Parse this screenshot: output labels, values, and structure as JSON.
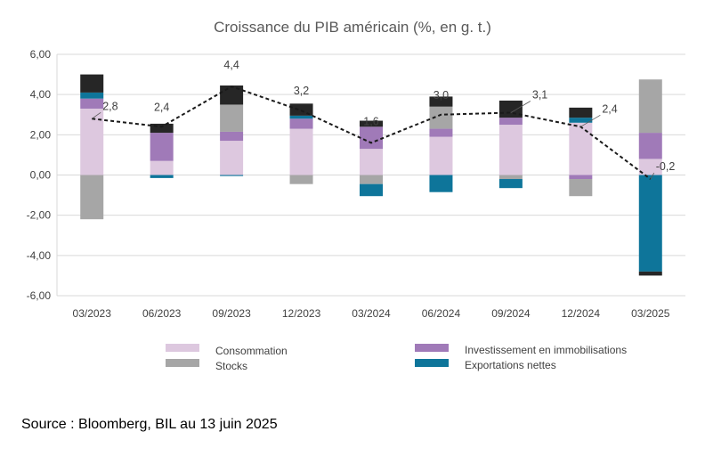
{
  "chart_data": {
    "type": "bar",
    "title": "Croissance du PIB américain (%, en g. t.)",
    "categories": [
      "03/2023",
      "06/2023",
      "09/2023",
      "12/2023",
      "03/2024",
      "06/2024",
      "09/2024",
      "12/2024",
      "03/2025"
    ],
    "ylim": [
      -6,
      6
    ],
    "yticks": [
      "-6,00",
      "-4,00",
      "-2,00",
      "0,00",
      "2,00",
      "4,00",
      "6,00"
    ],
    "grid": true,
    "legend_position": "bottom",
    "stacked": true,
    "series": [
      {
        "name": "Consommation",
        "color": "#DDC8DF",
        "values": [
          3.3,
          0.7,
          1.7,
          2.3,
          1.3,
          1.9,
          2.5,
          2.6,
          0.8
        ]
      },
      {
        "name": "Investissement en immobilisations",
        "color": "#A07AB8",
        "values": [
          0.5,
          1.4,
          0.45,
          0.5,
          1.1,
          0.4,
          0.35,
          -0.2,
          1.3
        ]
      },
      {
        "name": "Stocks",
        "color": "#A6A6A6",
        "values": [
          -2.2,
          0.0,
          1.35,
          -0.45,
          -0.45,
          1.1,
          -0.2,
          -0.85,
          2.65
        ]
      },
      {
        "name": "Exportations nettes",
        "color": "#0E759A",
        "values": [
          0.3,
          -0.15,
          -0.05,
          0.15,
          -0.6,
          -0.85,
          -0.45,
          0.25,
          -4.8
        ]
      },
      {
        "name": "",
        "color": "#262626",
        "values": [
          0.9,
          0.45,
          0.95,
          0.6,
          0.3,
          0.5,
          0.85,
          0.5,
          -0.2
        ]
      }
    ],
    "total": {
      "values": [
        2.8,
        2.4,
        4.4,
        3.2,
        1.6,
        3.0,
        3.1,
        2.4,
        -0.2
      ],
      "labels": [
        "2,8",
        "2,4",
        "4,4",
        "3,2",
        "1,6",
        "3,0",
        "3,1",
        "2,4",
        "-0,2"
      ],
      "style": "dashed-line"
    }
  },
  "footer": {
    "source": "Source : Bloomberg, BIL au 13 juin 2025"
  }
}
